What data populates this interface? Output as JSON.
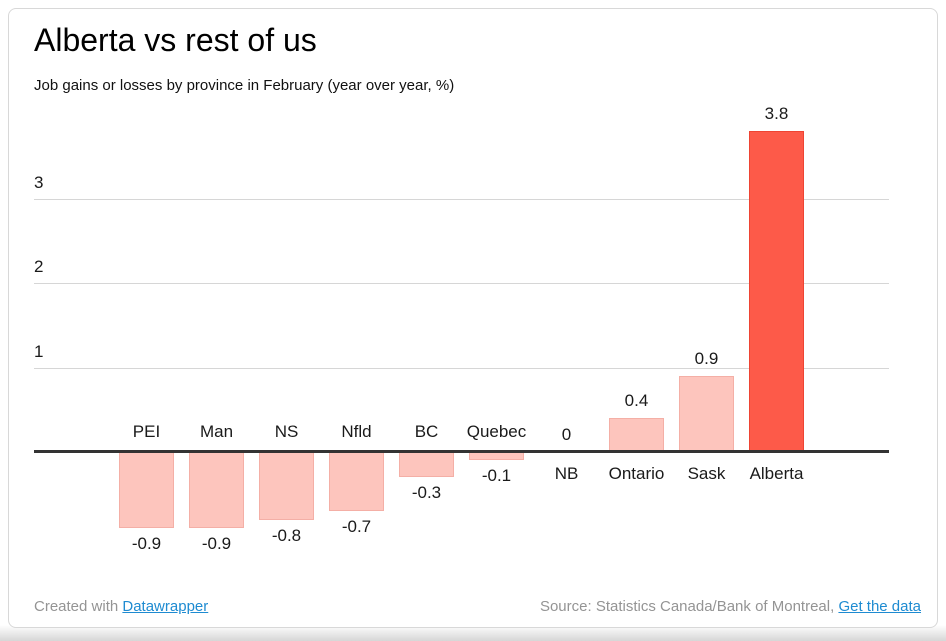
{
  "chart_data": {
    "type": "bar",
    "title": "Alberta vs rest of us",
    "subtitle": "Job gains or losses by province in February (year over year, %)",
    "categories": [
      "PEI",
      "Man",
      "NS",
      "Nfld",
      "BC",
      "Quebec",
      "NB",
      "Ontario",
      "Sask",
      "Alberta"
    ],
    "values": [
      -0.9,
      -0.9,
      -0.8,
      -0.7,
      -0.3,
      -0.1,
      0,
      0.4,
      0.9,
      3.8
    ],
    "yticks": [
      1,
      2,
      3
    ],
    "ylim": [
      -1.1,
      4.0
    ],
    "grid": "horizontal",
    "legend": "none",
    "colors": {
      "bar_default": "#fdc5bd",
      "bar_default_border": "#f4afa6",
      "bar_highlight": "#fd5a49",
      "bar_highlight_border": "#ee4433",
      "highlight_category": "Alberta",
      "gridline": "#d6d6d6",
      "baseline": "#333333"
    }
  },
  "footer": {
    "created_prefix": "Created with ",
    "created_link": "Datawrapper",
    "source_prefix": "Source: Statistics Canada/Bank of Montreal, ",
    "source_link": "Get the data",
    "link_color": "#1e8bd1"
  }
}
